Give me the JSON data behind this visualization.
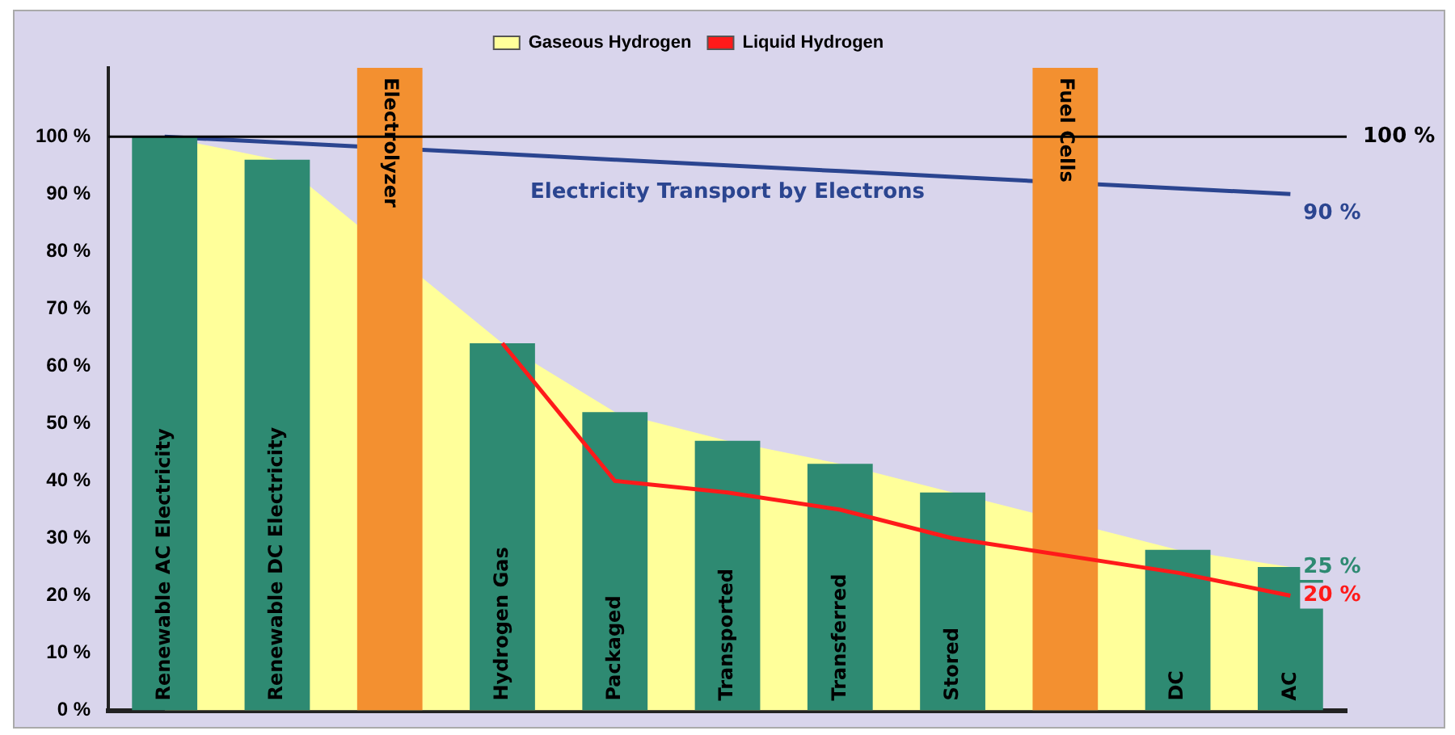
{
  "chart_data": {
    "type": "bar",
    "categories": [
      "Renewable AC Electricity",
      "Renewable DC Electricity",
      "Electrolyzer",
      "Hydrogen Gas",
      "Packaged",
      "Transported",
      "Transferred",
      "Stored",
      "Fuel Cells",
      "DC",
      "AC"
    ],
    "values": [
      100,
      96,
      112,
      64,
      52,
      47,
      43,
      38,
      112,
      28,
      25
    ],
    "colors": [
      "#2e8a72",
      "#2e8a72",
      "#f39030",
      "#2e8a72",
      "#2e8a72",
      "#2e8a72",
      "#2e8a72",
      "#2e8a72",
      "#f39030",
      "#2e8a72",
      "#2e8a72"
    ],
    "series": [
      {
        "name": "Electricity Transport by Electrons",
        "type": "line",
        "color": "#2b4590",
        "values": [
          100,
          99,
          null,
          97,
          96,
          95,
          94,
          93,
          null,
          91,
          90
        ],
        "value_labels": [
          null,
          null,
          null,
          null,
          null,
          null,
          null,
          null,
          null,
          null,
          "90 %"
        ]
      },
      {
        "name": "Gaseous Hydrogen",
        "type": "area",
        "color": "#ffff9a",
        "values": [
          100,
          96,
          null,
          64,
          52,
          47,
          43,
          38,
          null,
          28,
          25
        ],
        "value_labels": [
          null,
          null,
          null,
          null,
          null,
          null,
          null,
          null,
          null,
          null,
          "25 %"
        ]
      },
      {
        "name": "Liquid Hydrogen",
        "type": "line",
        "color": "#ff1a1a",
        "values": [
          null,
          null,
          null,
          64,
          40,
          38,
          35,
          30,
          null,
          24,
          20
        ],
        "value_labels": [
          null,
          null,
          null,
          null,
          null,
          null,
          null,
          null,
          null,
          null,
          "20 %"
        ]
      }
    ],
    "ylim": [
      0,
      112
    ],
    "yticks": [
      {
        "value": 0,
        "label": "0 %"
      },
      {
        "value": 10,
        "label": "10 %"
      },
      {
        "value": 20,
        "label": "20 %"
      },
      {
        "value": 30,
        "label": "30 %"
      },
      {
        "value": 40,
        "label": "40 %"
      },
      {
        "value": 50,
        "label": "50 %"
      },
      {
        "value": 60,
        "label": "60 %"
      },
      {
        "value": 70,
        "label": "70 %"
      },
      {
        "value": 80,
        "label": "80 %"
      },
      {
        "value": 90,
        "label": "90 %"
      },
      {
        "value": 100,
        "label": "100 %"
      }
    ],
    "ref_lines": [
      {
        "axis": "y",
        "value": 100,
        "label": "100 %",
        "color": "#000000"
      }
    ],
    "tick_labels": "y",
    "grid": false,
    "legend": "top"
  }
}
